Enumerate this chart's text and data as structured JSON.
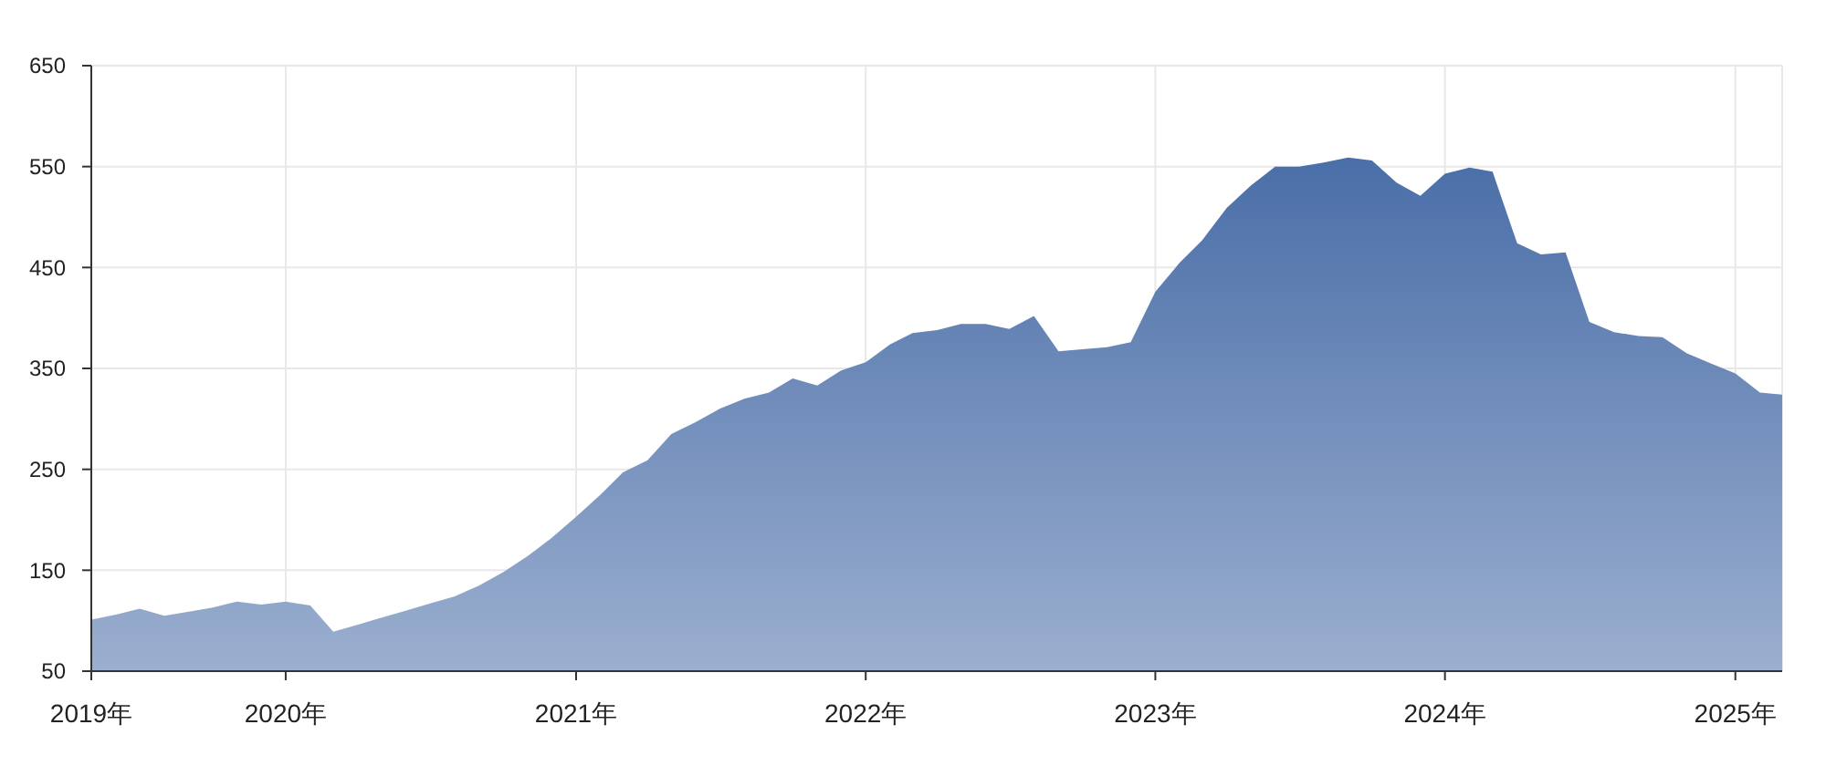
{
  "chart_data": {
    "type": "area",
    "x": [
      "2019-05",
      "2019-06",
      "2019-07",
      "2019-08",
      "2019-09",
      "2019-10",
      "2019-11",
      "2019-12",
      "2020-01",
      "2020-02",
      "2020-03",
      "2020-04",
      "2020-05",
      "2020-06",
      "2020-07",
      "2020-08",
      "2020-09",
      "2020-10",
      "2020-11",
      "2020-12",
      "2021-01",
      "2021-02",
      "2021-03",
      "2021-04",
      "2021-05",
      "2021-06",
      "2021-07",
      "2021-08",
      "2021-09",
      "2021-10",
      "2021-11",
      "2021-12",
      "2022-01",
      "2022-02",
      "2022-03",
      "2022-04",
      "2022-05",
      "2022-06",
      "2022-07",
      "2022-08",
      "2022-09",
      "2022-10",
      "2022-11",
      "2022-12",
      "2023-01",
      "2023-02",
      "2023-03",
      "2023-04",
      "2023-05",
      "2023-06",
      "2023-07",
      "2023-08",
      "2023-09",
      "2023-10",
      "2023-11",
      "2023-12",
      "2024-01",
      "2024-02",
      "2024-03",
      "2024-04",
      "2024-05",
      "2024-06",
      "2024-07",
      "2024-08",
      "2024-09",
      "2024-10",
      "2024-11",
      "2024-12",
      "2025-01",
      "2025-02",
      "2025-03"
    ],
    "series": [
      {
        "color": "#4a6ea8",
        "values": [
          101,
          106,
          112,
          105,
          109,
          113,
          119,
          116,
          119,
          115,
          89,
          96,
          103,
          110,
          117,
          124,
          135,
          148,
          164,
          182,
          203,
          225,
          247,
          259,
          285,
          297,
          310,
          320,
          326,
          340,
          333,
          348,
          356,
          374,
          385,
          388,
          394,
          394,
          389,
          402,
          367,
          369,
          371,
          376,
          426,
          455,
          477,
          509,
          531,
          550,
          550,
          554,
          559,
          556,
          534,
          521,
          543,
          549,
          545,
          474,
          463,
          465,
          396,
          386,
          382,
          381,
          365,
          355,
          345,
          326,
          324
        ]
      }
    ],
    "xlim": [
      "2019-05",
      "2025-03"
    ],
    "xticks": [
      {
        "value": "2019-05",
        "label": "2019年"
      },
      {
        "value": "2020-01",
        "label": "2020年"
      },
      {
        "value": "2021-01",
        "label": "2021年"
      },
      {
        "value": "2022-01",
        "label": "2022年"
      },
      {
        "value": "2023-01",
        "label": "2023年"
      },
      {
        "value": "2024-01",
        "label": "2024年"
      },
      {
        "value": "2025-01",
        "label": "2025年"
      }
    ],
    "ylim": [
      50,
      650
    ],
    "yticks": [
      50,
      150,
      250,
      350,
      450,
      550,
      650
    ],
    "grid": true
  }
}
